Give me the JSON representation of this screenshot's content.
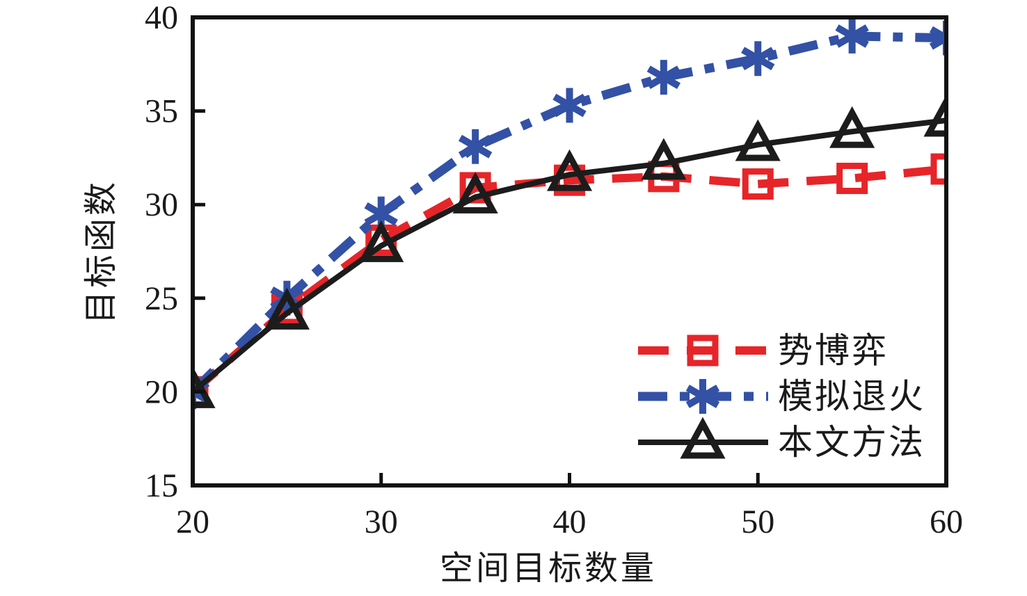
{
  "chart_data": {
    "type": "line",
    "title": "",
    "xlabel": "空间目标数量",
    "ylabel": "目标函数",
    "xlim": [
      20,
      60
    ],
    "ylim": [
      15,
      40
    ],
    "xticks": [
      20,
      30,
      40,
      50,
      60
    ],
    "yticks": [
      15,
      20,
      25,
      30,
      35,
      40
    ],
    "grid": false,
    "legend_position": "inside lower-right, no border",
    "x": [
      20,
      25,
      30,
      35,
      40,
      45,
      50,
      55,
      60
    ],
    "series": [
      {
        "id": "potential-game",
        "name": "势博弈",
        "color": "#e62529",
        "line_style": "dashed",
        "marker": "square",
        "values": [
          20.0,
          24.4,
          28.1,
          30.9,
          31.3,
          31.5,
          31.1,
          31.4,
          31.9
        ]
      },
      {
        "id": "simulated-annealing",
        "name": "模拟退火",
        "color": "#3351a5",
        "line_style": "dash-dot",
        "marker": "asterisk",
        "values": [
          20.0,
          25.0,
          29.5,
          33.1,
          35.3,
          36.8,
          37.8,
          39.0,
          38.9
        ]
      },
      {
        "id": "proposed-method",
        "name": "本文方法",
        "color": "#1c1c1c",
        "line_style": "solid",
        "marker": "triangle",
        "values": [
          20.0,
          24.2,
          27.8,
          30.4,
          31.6,
          32.2,
          33.2,
          33.9,
          34.5
        ]
      }
    ]
  }
}
